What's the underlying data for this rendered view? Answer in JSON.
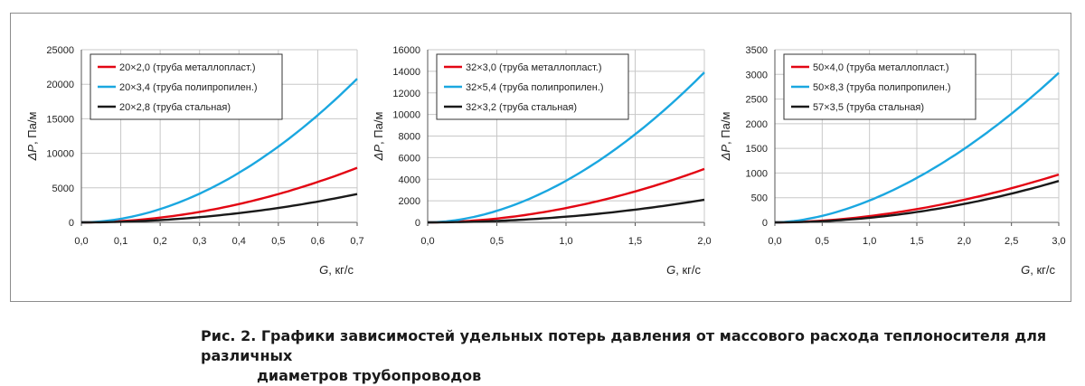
{
  "caption": {
    "line1": "Рис. 2. Графики зависимостей удельных потерь давления от массового расхода теплоносителя для различных",
    "line2": "диаметров трубопроводов"
  },
  "colors": {
    "red": "#e30613",
    "blue": "#1aa7e0",
    "black": "#1a1a1a",
    "grid": "#c8c8c8"
  },
  "chart_data": [
    {
      "type": "line",
      "ylabel_symbol": "ΔP",
      "ylabel_unit": ", Па/м",
      "xlabel_symbol": "G",
      "xlabel_unit": ", кг/с",
      "xlim": [
        0,
        0.7
      ],
      "ylim": [
        0,
        25000
      ],
      "x_ticks": [
        "0,0",
        "0,1",
        "0,2",
        "0,3",
        "0,4",
        "0,5",
        "0,6",
        "0,7"
      ],
      "y_ticks": [
        "0",
        "5000",
        "10000",
        "15000",
        "20000",
        "25000"
      ],
      "grid": true,
      "legend_position": "top-left",
      "series": [
        {
          "name": "20×2,0 (труба металлопласт.)",
          "color": "red",
          "end_value": 7900,
          "exponent": 1.95
        },
        {
          "name": "20×3,4 (труба полипропилен.)",
          "color": "blue",
          "end_value": 20800,
          "exponent": 1.9
        },
        {
          "name": "20×2,8 (труба стальная)",
          "color": "black",
          "end_value": 4100,
          "exponent": 2.0
        }
      ]
    },
    {
      "type": "line",
      "ylabel_symbol": "ΔP",
      "ylabel_unit": ", Па/м",
      "xlabel_symbol": "G",
      "xlabel_unit": ", кг/с",
      "xlim": [
        0,
        2.0
      ],
      "ylim": [
        0,
        16000
      ],
      "x_ticks": [
        "0,0",
        "0,5",
        "1,0",
        "1,5",
        "2,0"
      ],
      "y_ticks": [
        "0",
        "2000",
        "4000",
        "6000",
        "8000",
        "10000",
        "12000",
        "14000",
        "16000"
      ],
      "grid": true,
      "legend_position": "top-left",
      "series": [
        {
          "name": "32×3,0 (труба металлопласт.)",
          "color": "red",
          "end_value": 4950,
          "exponent": 1.9
        },
        {
          "name": "32×5,4 (труба полипропилен.)",
          "color": "blue",
          "end_value": 13900,
          "exponent": 1.85
        },
        {
          "name": "32×3,2 (труба стальная)",
          "color": "black",
          "end_value": 2100,
          "exponent": 2.0
        }
      ]
    },
    {
      "type": "line",
      "ylabel_symbol": "ΔP",
      "ylabel_unit": ", Па/м",
      "xlabel_symbol": "G",
      "xlabel_unit": ", кг/с",
      "xlim": [
        0,
        3.0
      ],
      "ylim": [
        0,
        3500
      ],
      "x_ticks": [
        "0,0",
        "0,5",
        "1,0",
        "1,5",
        "2,0",
        "2,5",
        "3,0"
      ],
      "y_ticks": [
        "0",
        "500",
        "1000",
        "1500",
        "2000",
        "2500",
        "3000",
        "3500"
      ],
      "grid": true,
      "legend_position": "top-left",
      "series": [
        {
          "name": "50×4,0 (труба металлопласт.)",
          "color": "red",
          "end_value": 970,
          "exponent": 1.85
        },
        {
          "name": "50×8,3 (труба полипропилен.)",
          "color": "blue",
          "end_value": 3030,
          "exponent": 1.75
        },
        {
          "name": "57×3,5 (труба стальная)",
          "color": "black",
          "end_value": 840,
          "exponent": 2.0
        }
      ]
    }
  ]
}
